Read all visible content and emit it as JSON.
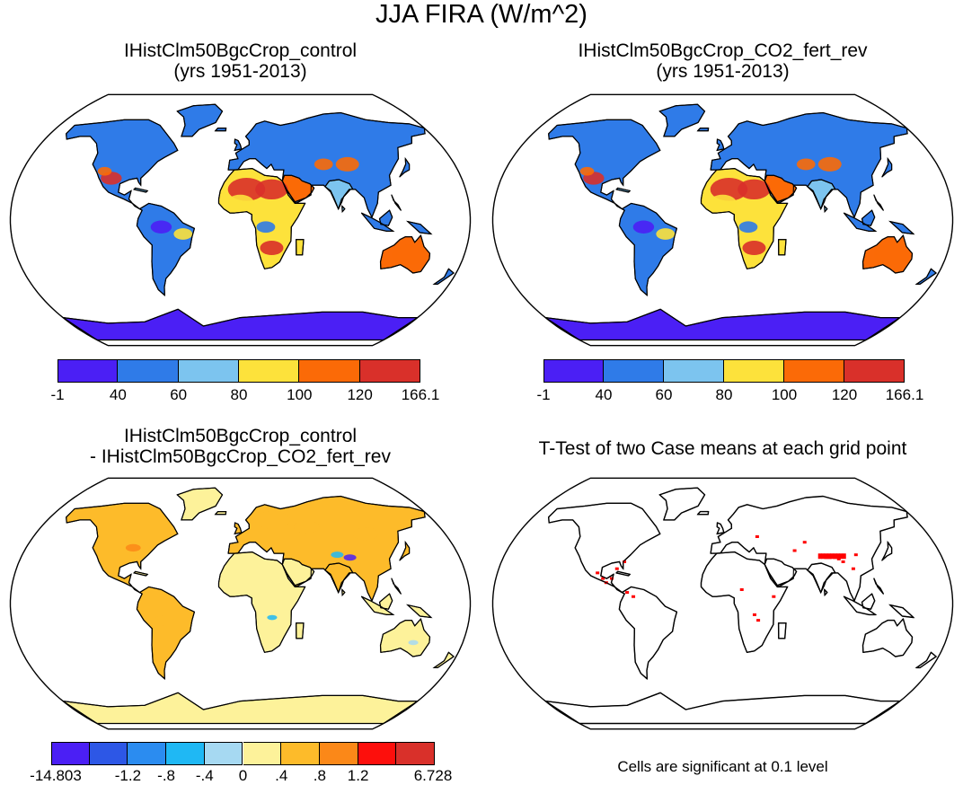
{
  "figure": {
    "title": "JJA FIRA (W/m^2)",
    "panels": [
      {
        "title_line1": "IHistClm50BgcCrop_control",
        "title_line2": "(yrs 1951-2013)"
      },
      {
        "title_line1": "IHistClm50BgcCrop_CO2_fert_rev",
        "title_line2": "(yrs 1951-2013)"
      },
      {
        "title_line1": "IHistClm50BgcCrop_control",
        "title_line2": "- IHistClm50BgcCrop_CO2_fert_rev"
      },
      {
        "title_line1": "T-Test of two Case means at each grid point",
        "title_line2": ""
      }
    ],
    "note": "Cells are significant at 0.1 level"
  },
  "colorbar_abs": {
    "labels": [
      "-1",
      "40",
      "60",
      "80",
      "100",
      "120",
      "166.1"
    ],
    "colors": [
      "#4b1ff5",
      "#2f7be8",
      "#7cc4ef",
      "#fde23b",
      "#fb6a07",
      "#d9302a"
    ]
  },
  "colorbar_diff": {
    "labels": [
      "-14.803",
      "-1.2",
      "-.8",
      "-.4",
      "0",
      ".4",
      ".8",
      "1.2",
      "6.728"
    ],
    "colors": [
      "#4b1ff5",
      "#2d57e6",
      "#2b8cf0",
      "#1fb8f4",
      "#a6d9f2",
      "#fdf29a",
      "#fdbb2a",
      "#fb8818",
      "#fd0f0c",
      "#d9302a"
    ]
  },
  "colors": {
    "land_outline": "#000000",
    "significant": "#ff0000"
  }
}
